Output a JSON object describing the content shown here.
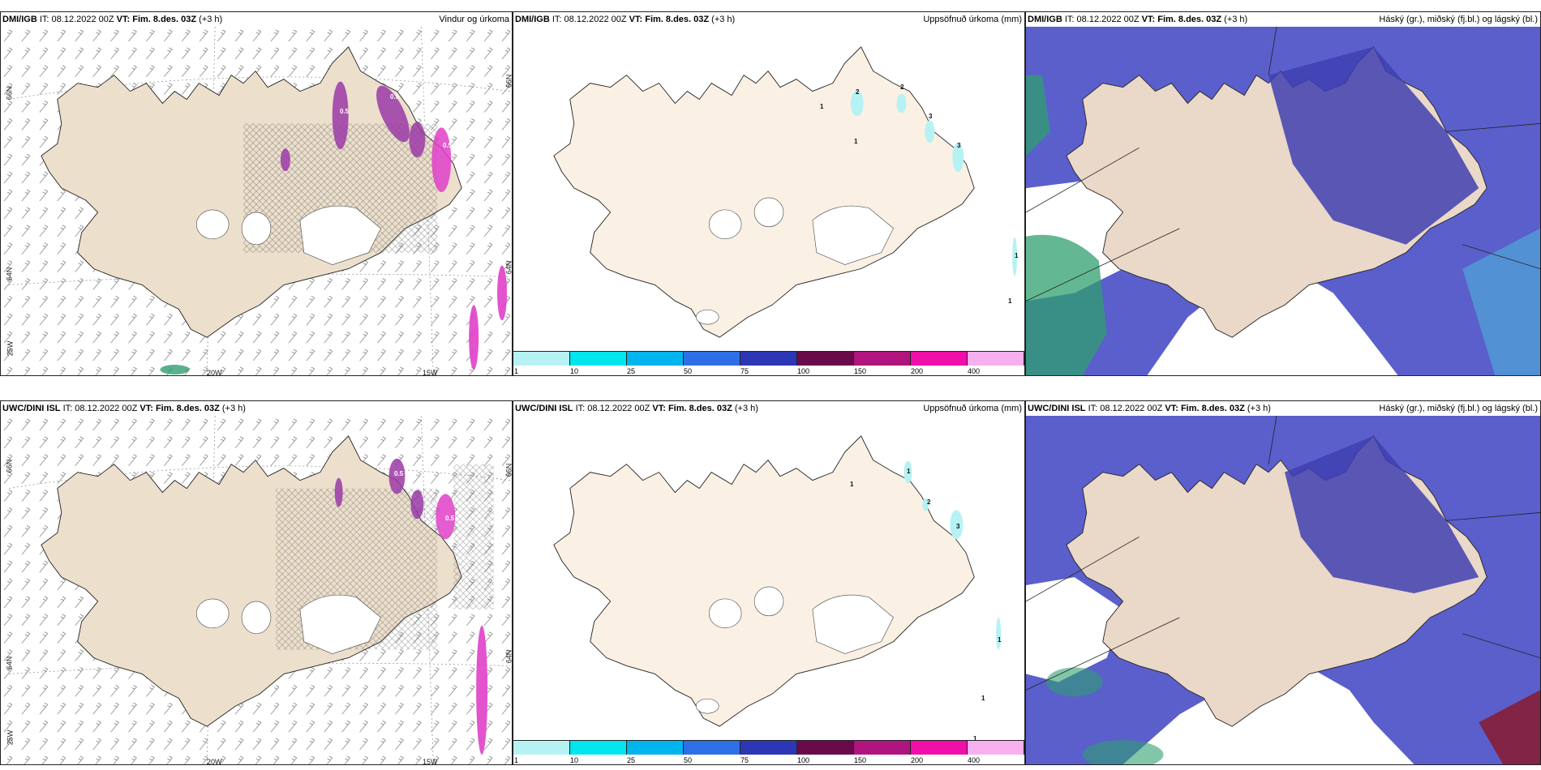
{
  "panels": [
    {
      "source": "DMI/IGB",
      "it_label": "IT:",
      "it": "08.12.2022 00Z",
      "vt_label": "VT:",
      "vt": "Fim. 8.des. 03Z",
      "step": "(+3 h)",
      "title": "Vindur og úrkoma"
    },
    {
      "source": "DMI/IGB",
      "it_label": "IT:",
      "it": "08.12.2022 00Z",
      "vt_label": "VT:",
      "vt": "Fim. 8.des. 03Z",
      "step": "(+3 h)",
      "title": "Uppsöfnuð úrkoma (mm)"
    },
    {
      "source": "DMI/IGB",
      "it_label": "IT:",
      "it": "08.12.2022 00Z",
      "vt_label": "VT:",
      "vt": "Fim. 8.des. 03Z",
      "step": "(+3 h)",
      "title": "Háský (gr.), miðský (fj.bl.) og lágský (bl.)"
    },
    {
      "source": "UWC/DINI ISL",
      "it_label": "IT:",
      "it": "08.12.2022 00Z",
      "vt_label": "VT:",
      "vt": "Fim. 8.des. 03Z",
      "step": "(+3 h)",
      "title": ""
    },
    {
      "source": "UWC/DINI ISL",
      "it_label": "IT:",
      "it": "08.12.2022 00Z",
      "vt_label": "VT:",
      "vt": "Fim. 8.des. 03Z",
      "step": "(+3 h)",
      "title": "Uppsöfnuð úrkoma (mm)"
    },
    {
      "source": "UWC/DINI ISL",
      "it_label": "IT:",
      "it": "08.12.2022 00Z",
      "vt_label": "VT:",
      "vt": "Fim. 8.des. 03Z",
      "step": "(+3 h)",
      "title": "Háský (gr.), miðský (fj.bl.) og lágský (bl.)"
    }
  ],
  "grid_labels": {
    "lat_66": "66N",
    "lat_64": "64N",
    "lon_25": "25W",
    "lon_20": "20W",
    "lon_15": "15W"
  },
  "legend": {
    "ticks": [
      "1",
      "10",
      "25",
      "50",
      "75",
      "100",
      "150",
      "200",
      "400"
    ],
    "colors": [
      "#b6f2f4",
      "#00e5ee",
      "#00b4ee",
      "#2f6fe6",
      "#2c37b5",
      "#6b0a4a",
      "#b0147e",
      "#f00fa9",
      "#f7b0ee"
    ]
  },
  "contours_top": [
    "1",
    "2",
    "2",
    "3",
    "1",
    "3",
    "1",
    "1"
  ],
  "contours_bottom": [
    "1",
    "1",
    "2",
    "3",
    "1",
    "1",
    "1"
  ],
  "precip_labels_top": [
    "0.5",
    "0.5",
    "1",
    "0.5"
  ],
  "precip_labels_bottom": [
    "0.5",
    "0.5"
  ],
  "colors": {
    "land_wind": "#ecdfcc",
    "land_precip": "#fbf0e4",
    "land_cloud": "#ead8c8",
    "glacier": "#ffffff",
    "cloud_mid": "#5a5fcc",
    "cloud_dark": "#3f3fb0",
    "cloud_low": "#4db3d8",
    "cloud_high": "#2f9f6f",
    "precip_violet": "#9b3aa6",
    "precip_pink": "#e040c8"
  }
}
